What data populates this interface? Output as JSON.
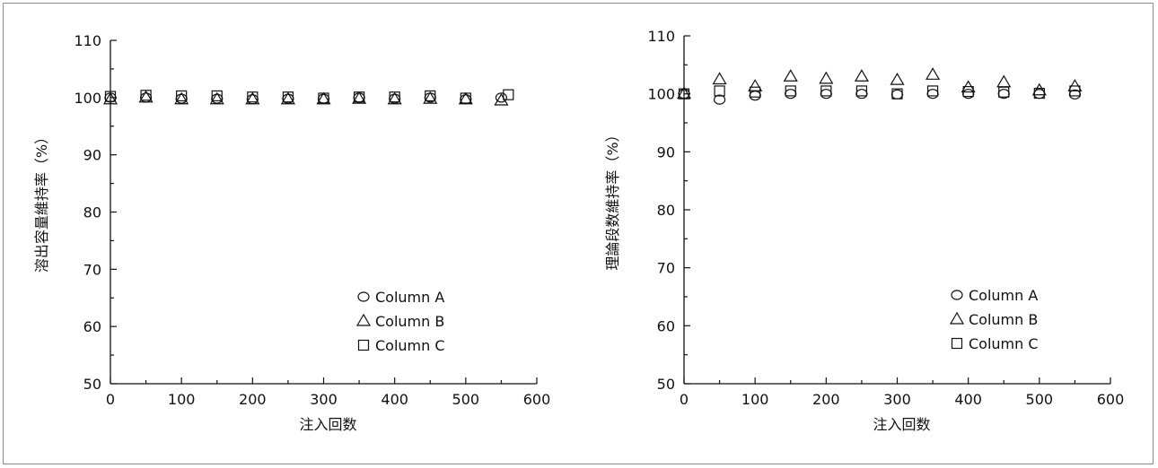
{
  "chart_data": [
    {
      "type": "scatter",
      "xlabel": "注入回数",
      "ylabel": "溶出容量維持率（%）",
      "xlim": [
        0,
        600
      ],
      "ylim": [
        50,
        110
      ],
      "xticks": [
        0,
        100,
        200,
        300,
        400,
        500,
        600
      ],
      "yticks": [
        50,
        60,
        70,
        80,
        90,
        100,
        110
      ],
      "legend_position": "bottom-right",
      "series": [
        {
          "name": "Column A",
          "marker": "circle",
          "x": [
            0,
            50,
            100,
            150,
            200,
            250,
            300,
            350,
            400,
            450,
            500,
            550
          ],
          "y": [
            100,
            100,
            99.8,
            99.8,
            99.7,
            99.8,
            99.8,
            100,
            99.8,
            100,
            99.7,
            100
          ]
        },
        {
          "name": "Column B",
          "marker": "triangle",
          "x": [
            0,
            50,
            100,
            150,
            200,
            250,
            300,
            350,
            400,
            450,
            500,
            550
          ],
          "y": [
            99.7,
            100,
            99.7,
            99.7,
            99.7,
            99.7,
            99.7,
            99.8,
            99.7,
            99.8,
            99.7,
            99.5
          ]
        },
        {
          "name": "Column C",
          "marker": "square",
          "x": [
            0,
            50,
            100,
            150,
            200,
            250,
            300,
            350,
            400,
            450,
            500,
            560
          ],
          "y": [
            100.2,
            100.4,
            100.3,
            100.3,
            100.1,
            100.1,
            99.9,
            100.1,
            100.1,
            100.3,
            99.9,
            100.5
          ]
        }
      ]
    },
    {
      "type": "scatter",
      "xlabel": "注入回数",
      "ylabel": "理論段数維持率（%）",
      "xlim": [
        0,
        600
      ],
      "ylim": [
        50,
        110
      ],
      "xticks": [
        0,
        100,
        200,
        300,
        400,
        500,
        600
      ],
      "yticks": [
        50,
        60,
        70,
        80,
        90,
        100,
        110
      ],
      "legend_position": "bottom-right",
      "series": [
        {
          "name": "Column A",
          "marker": "circle",
          "x": [
            0,
            50,
            100,
            150,
            200,
            250,
            300,
            350,
            400,
            450,
            500,
            550
          ],
          "y": [
            100,
            99,
            99.7,
            100,
            100,
            100,
            99.9,
            100,
            100,
            100,
            100,
            99.9
          ]
        },
        {
          "name": "Column B",
          "marker": "triangle",
          "x": [
            0,
            50,
            100,
            150,
            200,
            250,
            300,
            350,
            400,
            450,
            500,
            550
          ],
          "y": [
            100,
            102.5,
            101.3,
            103,
            102.6,
            103,
            102.4,
            103.3,
            101.1,
            102,
            100.6,
            101.3
          ]
        },
        {
          "name": "Column C",
          "marker": "square",
          "x": [
            0,
            50,
            100,
            150,
            200,
            250,
            300,
            350,
            400,
            450,
            500,
            550
          ],
          "y": [
            100,
            100.5,
            100.3,
            100.5,
            100.5,
            100.5,
            100,
            100.5,
            100.4,
            100.3,
            100.1,
            100.5
          ]
        }
      ]
    }
  ]
}
